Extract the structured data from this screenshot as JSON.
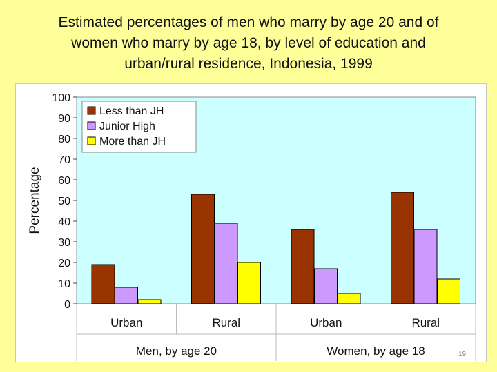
{
  "slide": {
    "title_lines": [
      "Estimated percentages of men who marry by age 20 and of",
      "women who marry by age 18, by level of education and",
      "urban/rural residence, Indonesia, 1999"
    ],
    "page_number": "19"
  },
  "colors": {
    "background": "#ffff99",
    "plot_area": "#ccffff",
    "series": [
      "#993300",
      "#cc99ff",
      "#ffff00"
    ]
  },
  "chart_data": {
    "type": "bar",
    "title": "Estimated percentages of men who marry by age 20 and of women who marry by age 18, by level of education and urban/rural residence, Indonesia, 1999",
    "ylabel": "Percentage",
    "ylim": [
      0,
      100
    ],
    "yticks": [
      0,
      10,
      20,
      30,
      40,
      50,
      60,
      70,
      80,
      90,
      100
    ],
    "grid": false,
    "legend_position": "top-left",
    "categories": [
      "Urban",
      "Rural",
      "Urban",
      "Rural"
    ],
    "groups": [
      "Men, by age 20",
      "Women, by age 18"
    ],
    "series": [
      {
        "name": "Less than JH",
        "values": [
          19,
          53,
          36,
          54
        ]
      },
      {
        "name": "Junior High",
        "values": [
          8,
          39,
          17,
          36
        ]
      },
      {
        "name": "More than JH",
        "values": [
          2,
          20,
          5,
          12
        ]
      }
    ]
  }
}
